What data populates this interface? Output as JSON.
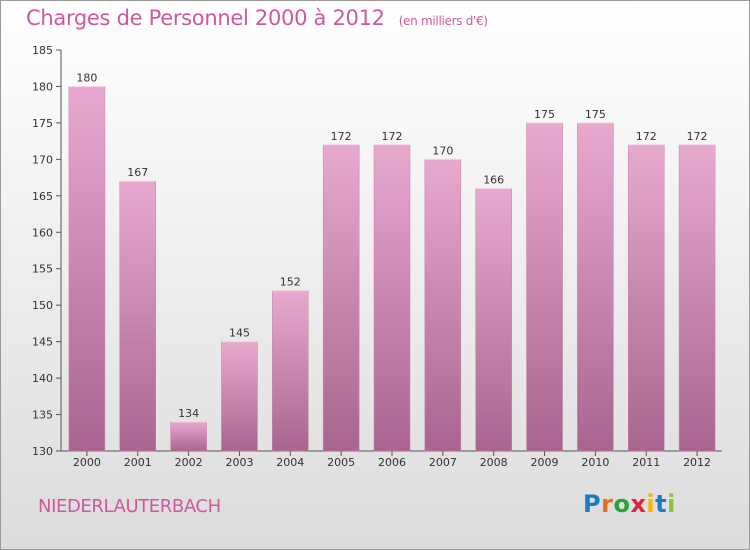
{
  "header": {
    "title": "Charges de Personnel 2000 à 2012",
    "subtitle": "(en milliers d'€)"
  },
  "footer": {
    "town": "NIEDERLAUTERBACH",
    "logo": "Proxiti"
  },
  "colors": {
    "accent": "#d0589c",
    "bar_top": "#e8a9cf",
    "bar_bottom": "#a9658f"
  },
  "chart_data": {
    "type": "bar",
    "title": "Charges de Personnel 2000 à 2012",
    "subtitle": "(en milliers d'€)",
    "xlabel": "",
    "ylabel": "",
    "categories": [
      "2000",
      "2001",
      "2002",
      "2003",
      "2004",
      "2005",
      "2006",
      "2007",
      "2008",
      "2009",
      "2010",
      "2011",
      "2012"
    ],
    "values": [
      180,
      167,
      134,
      145,
      152,
      172,
      172,
      170,
      166,
      175,
      175,
      172,
      172
    ],
    "ylim": [
      130,
      185
    ],
    "yticks": [
      130,
      135,
      140,
      145,
      150,
      155,
      160,
      165,
      170,
      175,
      180,
      185
    ],
    "grid": false,
    "legend": "none"
  }
}
